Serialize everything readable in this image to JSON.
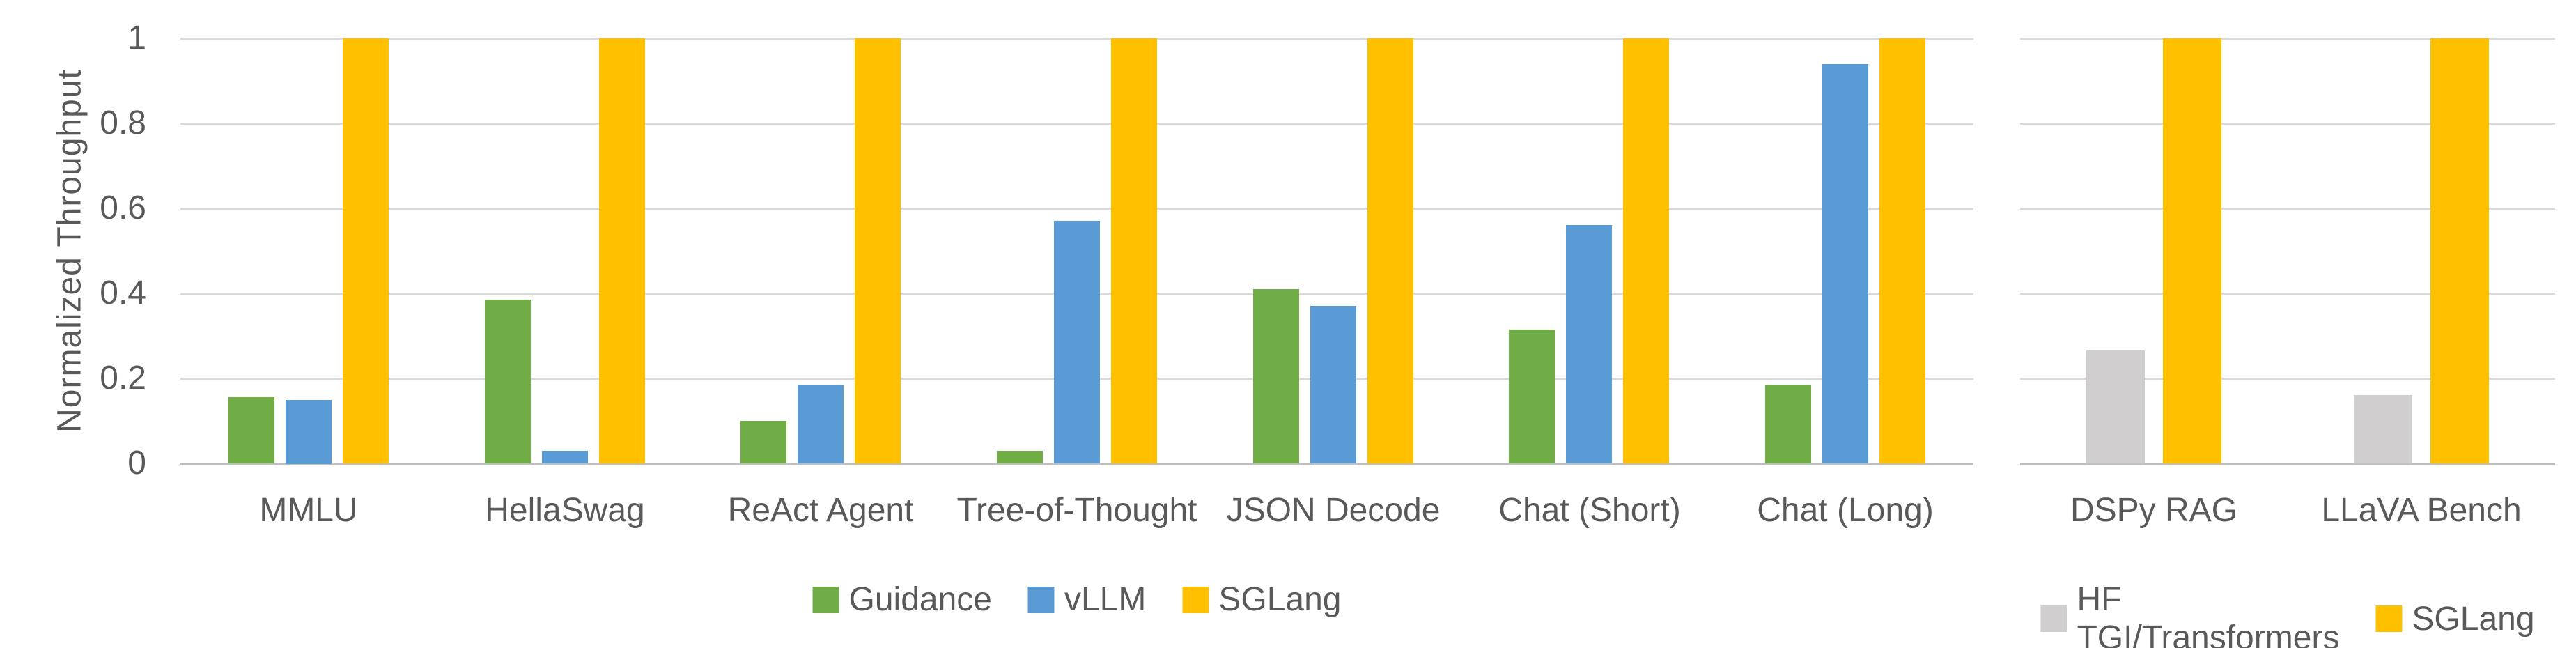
{
  "figure": {
    "y_axis_title": "Normalized Throughput"
  },
  "colors": {
    "background": "#FFFFFF",
    "gridline": "#D9D9D9",
    "axis_line": "#BFBFBF",
    "text": "#595959",
    "guidance_green": "#70AD47",
    "vllm_blue": "#5B9BD5",
    "sglang_yellow": "#FFC000",
    "hf_gray": "#D0CECE"
  },
  "chart_data": [
    {
      "type": "bar",
      "title": "",
      "xlabel": "",
      "ylabel": "Normalized Throughput",
      "ylim": [
        0,
        1
      ],
      "grid": true,
      "legend_position": "bottom",
      "yticks": [
        {
          "value": 0,
          "label": "0"
        },
        {
          "value": 0.2,
          "label": "0.2"
        },
        {
          "value": 0.4,
          "label": "0.4"
        },
        {
          "value": 0.6,
          "label": "0.6"
        },
        {
          "value": 0.8,
          "label": "0.8"
        },
        {
          "value": 1,
          "label": "1"
        }
      ],
      "categories": [
        "MMLU",
        "HellaSwag",
        "ReAct Agent",
        "Tree-of-Thought",
        "JSON Decode",
        "Chat (Short)",
        "Chat (Long)"
      ],
      "series": [
        {
          "name": "Guidance",
          "color": "#70AD47",
          "values": [
            0.155,
            0.385,
            0.1,
            0.03,
            0.41,
            0.315,
            0.185
          ]
        },
        {
          "name": "vLLM",
          "color": "#5B9BD5",
          "values": [
            0.15,
            0.03,
            0.185,
            0.57,
            0.37,
            0.56,
            0.94
          ]
        },
        {
          "name": "SGLang",
          "color": "#FFC000",
          "values": [
            1,
            1,
            1,
            1,
            1,
            1,
            1
          ]
        }
      ]
    },
    {
      "type": "bar",
      "title": "",
      "xlabel": "",
      "ylabel": "",
      "ylim": [
        0,
        1
      ],
      "grid": true,
      "legend_position": "bottom",
      "yticks": [
        {
          "value": 0,
          "label": ""
        },
        {
          "value": 0.2,
          "label": ""
        },
        {
          "value": 0.4,
          "label": ""
        },
        {
          "value": 0.6,
          "label": ""
        },
        {
          "value": 0.8,
          "label": ""
        },
        {
          "value": 1,
          "label": ""
        }
      ],
      "categories": [
        "DSPy RAG",
        "LLaVA Bench"
      ],
      "series": [
        {
          "name": "HF TGI/Transformers",
          "color": "#D0CECE",
          "values": [
            0.265,
            0.16
          ]
        },
        {
          "name": "SGLang",
          "color": "#FFC000",
          "values": [
            1,
            1
          ]
        }
      ]
    }
  ]
}
